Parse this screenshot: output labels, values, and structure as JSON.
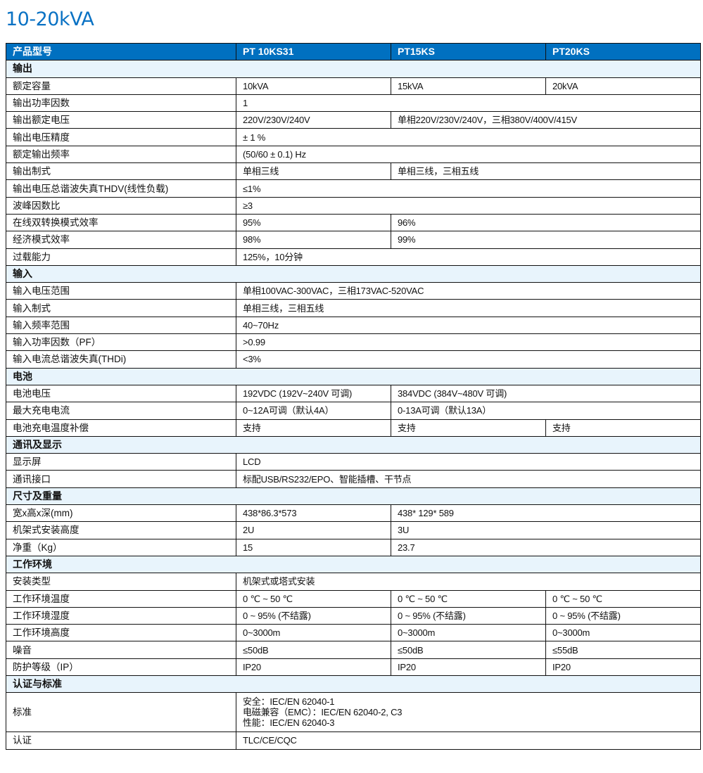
{
  "title": "10-20kVA",
  "colors": {
    "header_bg": "#0070c0",
    "section_bg": "#e8f4fc",
    "title": "#0a72c4"
  },
  "table": {
    "header": [
      "产品型号",
      "PT 10KS31",
      "PT15KS",
      "PT20KS"
    ],
    "rows": [
      {
        "type": "section",
        "label": "输出"
      },
      {
        "label": "额定容量",
        "cells": [
          {
            "t": "10kVA",
            "s": 1
          },
          {
            "t": "15kVA",
            "s": 1
          },
          {
            "t": "20kVA",
            "s": 1
          }
        ]
      },
      {
        "label": "输出功率因数",
        "cells": [
          {
            "t": "1",
            "s": 3
          }
        ]
      },
      {
        "label": "输出额定电压",
        "cells": [
          {
            "t": "220V/230V/240V",
            "s": 1
          },
          {
            "t": "单相220V/230V/240V，三相380V/400V/415V",
            "s": 2
          }
        ]
      },
      {
        "label": "输出电压精度",
        "cells": [
          {
            "t": "± 1 %",
            "s": 3
          }
        ]
      },
      {
        "label": "额定输出频率",
        "cells": [
          {
            "t": "(50/60 ± 0.1) Hz",
            "s": 3
          }
        ]
      },
      {
        "label": "输出制式",
        "cells": [
          {
            "t": "单相三线",
            "s": 1
          },
          {
            "t": "单相三线，三相五线",
            "s": 2
          }
        ]
      },
      {
        "label": "输出电压总谐波失真THDV(线性负载)",
        "cells": [
          {
            "t": "≤1%",
            "s": 3
          }
        ]
      },
      {
        "label": "波峰因数比",
        "cells": [
          {
            "t": "≥3",
            "s": 3
          }
        ]
      },
      {
        "label": "在线双转换模式效率",
        "cells": [
          {
            "t": "95%",
            "s": 1
          },
          {
            "t": "96%",
            "s": 2
          }
        ]
      },
      {
        "label": "经济模式效率",
        "cells": [
          {
            "t": "98%",
            "s": 1
          },
          {
            "t": "99%",
            "s": 2
          }
        ]
      },
      {
        "label": "过载能力",
        "cells": [
          {
            "t": "125%，10分钟",
            "s": 3
          }
        ]
      },
      {
        "type": "section",
        "label": "输入"
      },
      {
        "label": "输入电压范围",
        "cells": [
          {
            "t": "单相100VAC-300VAC，三相173VAC-520VAC",
            "s": 3
          }
        ]
      },
      {
        "label": "输入制式",
        "cells": [
          {
            "t": "单相三线，三相五线",
            "s": 3
          }
        ]
      },
      {
        "label": "输入频率范围",
        "cells": [
          {
            "t": "40~70Hz",
            "s": 3
          }
        ]
      },
      {
        "label": "输入功率因数（PF）",
        "cells": [
          {
            "t": ">0.99",
            "s": 3
          }
        ]
      },
      {
        "label": "输入电流总谐波失真(THDi)",
        "cells": [
          {
            "t": "<3%",
            "s": 3
          }
        ]
      },
      {
        "type": "section",
        "label": "电池"
      },
      {
        "label": "电池电压",
        "cells": [
          {
            "t": "192VDC (192V~240V 可调)",
            "s": 1
          },
          {
            "t": "384VDC (384V~480V 可调)",
            "s": 2
          }
        ]
      },
      {
        "label": "最大充电电流",
        "cells": [
          {
            "t": "0~12A可调（默认4A）",
            "s": 1
          },
          {
            "t": "0-13A可调（默认13A）",
            "s": 2
          }
        ]
      },
      {
        "label": "电池充电温度补偿",
        "cells": [
          {
            "t": "支持",
            "s": 1
          },
          {
            "t": "支持",
            "s": 1
          },
          {
            "t": "支持",
            "s": 1
          }
        ]
      },
      {
        "type": "section",
        "label": "通讯及显示"
      },
      {
        "label": "显示屏",
        "cells": [
          {
            "t": "LCD",
            "s": 3
          }
        ]
      },
      {
        "label": "通讯接口",
        "cells": [
          {
            "t": "标配USB/RS232/EPO、智能插槽、干节点",
            "s": 3
          }
        ]
      },
      {
        "type": "section",
        "label": "尺寸及重量"
      },
      {
        "label": "宽x高x深(mm)",
        "cells": [
          {
            "t": "438*86.3*573",
            "s": 1
          },
          {
            "t": "438* 129* 589",
            "s": 2
          }
        ]
      },
      {
        "label": "机架式安装高度",
        "cells": [
          {
            "t": "2U",
            "s": 1
          },
          {
            "t": "3U",
            "s": 2
          }
        ]
      },
      {
        "label": "净重（Kg）",
        "cells": [
          {
            "t": "15",
            "s": 1
          },
          {
            "t": "23.7",
            "s": 2
          }
        ]
      },
      {
        "type": "section",
        "label": "工作环境"
      },
      {
        "label": "安装类型",
        "cells": [
          {
            "t": "机架式或塔式安装",
            "s": 3
          }
        ]
      },
      {
        "label": "工作环境温度",
        "cells": [
          {
            "t": "0 ℃ ~ 50 ℃",
            "s": 1
          },
          {
            "t": "0 ℃ ~ 50 ℃",
            "s": 1
          },
          {
            "t": "0 ℃ ~ 50 ℃",
            "s": 1
          }
        ]
      },
      {
        "label": "工作环境湿度",
        "cells": [
          {
            "t": "0 ~ 95% (不结露)",
            "s": 1
          },
          {
            "t": "0 ~ 95% (不结露)",
            "s": 1
          },
          {
            "t": "0 ~ 95% (不结露)",
            "s": 1
          }
        ]
      },
      {
        "label": "工作环境高度",
        "cells": [
          {
            "t": "0~3000m",
            "s": 1
          },
          {
            "t": "0~3000m",
            "s": 1
          },
          {
            "t": "0~3000m",
            "s": 1
          }
        ]
      },
      {
        "label": "噪音",
        "cells": [
          {
            "t": "≤50dB",
            "s": 1
          },
          {
            "t": "≤50dB",
            "s": 1
          },
          {
            "t": "≤55dB",
            "s": 1
          }
        ]
      },
      {
        "label": "防护等级（IP）",
        "cells": [
          {
            "t": "IP20",
            "s": 1
          },
          {
            "t": "IP20",
            "s": 1
          },
          {
            "t": "IP20",
            "s": 1
          }
        ]
      },
      {
        "type": "section",
        "label": "认证与标准"
      },
      {
        "label": "标准",
        "tall": true,
        "cells": [
          {
            "lines": [
              "安全：IEC/EN 62040-1",
              "电磁兼容（EMC）：IEC/EN 62040-2, C3",
              "性能：IEC/EN 62040-3"
            ],
            "s": 3
          }
        ]
      },
      {
        "label": "认证",
        "cells": [
          {
            "t": "TLC/CE/CQC",
            "s": 3
          }
        ]
      }
    ]
  }
}
